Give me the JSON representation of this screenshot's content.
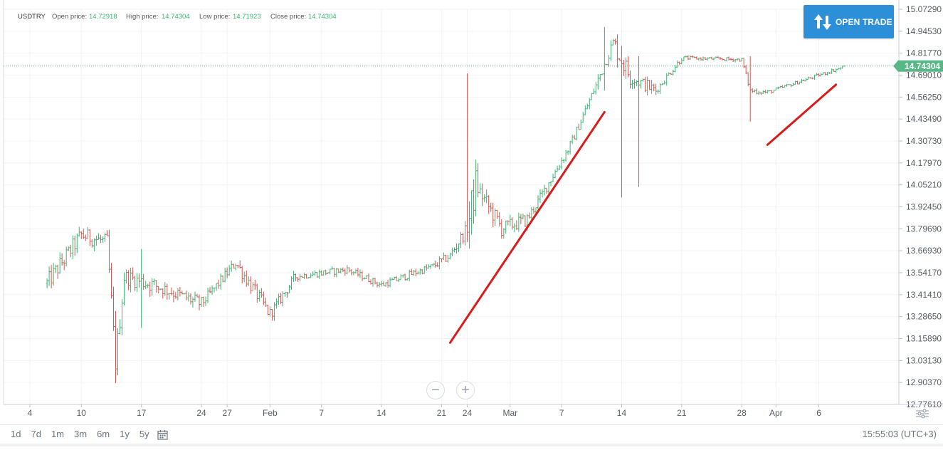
{
  "header": {
    "symbol": "USDTRY",
    "open_label": "Open price:",
    "open_value": "14.72918",
    "high_label": "High price:",
    "high_value": "14.74304",
    "low_label": "Low price:",
    "low_value": "14.71923",
    "close_label": "Close price:",
    "close_value": "14.74304"
  },
  "open_trade_label": "OPEN TRADE",
  "zoom": {
    "minus": "−",
    "plus": "+"
  },
  "ranges": [
    "1d",
    "7d",
    "1m",
    "3m",
    "6m",
    "1y",
    "5y"
  ],
  "clock": "15:55:03 (UTC+3)",
  "colors": {
    "up": "#3cb371",
    "down": "#d9534f",
    "price_tag": "#56b886",
    "trend": "#d81c1c",
    "button": "#2d8fd8"
  },
  "chart_data": {
    "type": "ohlc",
    "symbol": "USDTRY",
    "y_ticks": [
      "15.07290",
      "14.94530",
      "14.81770",
      "14.69010",
      "14.56250",
      "14.43490",
      "14.30730",
      "14.17970",
      "14.05210",
      "13.92450",
      "13.79690",
      "13.66930",
      "13.54170",
      "13.41410",
      "13.28650",
      "13.15890",
      "13.03130",
      "12.90370",
      "12.77610"
    ],
    "ylim": [
      12.7761,
      15.0729
    ],
    "x_ticks": [
      "4",
      "10",
      "17",
      "24",
      "27",
      "Feb",
      "7",
      "14",
      "21",
      "24",
      "Mar",
      "7",
      "14",
      "21",
      "28",
      "Apr",
      "6"
    ],
    "last_price": "14.74304",
    "trend_lines": [
      {
        "from": [
          "Feb 22",
          13.135
        ],
        "to": [
          "Mar 12",
          14.475
        ]
      },
      {
        "from": [
          "Mar 31",
          14.285
        ],
        "to": [
          "Apr 8",
          14.635
        ]
      }
    ],
    "segments": [
      {
        "from": "Jan 6",
        "to": "Jan 10",
        "start": 13.48,
        "end": 13.76,
        "vol": 0.1
      },
      {
        "from": "Jan 10",
        "to": "Jan 13",
        "start": 13.76,
        "end": 13.72,
        "vol": 0.09
      },
      {
        "from": "Jan 13",
        "to": "Jan 14",
        "start": 13.72,
        "end": 13.02,
        "vol": 0.12
      },
      {
        "from": "Jan 14",
        "to": "Jan 15",
        "start": 13.02,
        "end": 13.52,
        "vol": 0.12
      },
      {
        "from": "Jan 15",
        "to": "Jan 19",
        "start": 13.52,
        "end": 13.46,
        "vol": 0.09
      },
      {
        "from": "Jan 19",
        "to": "Jan 24",
        "start": 13.46,
        "end": 13.36,
        "vol": 0.08
      },
      {
        "from": "Jan 24",
        "to": "Jan 28",
        "start": 13.36,
        "end": 13.6,
        "vol": 0.06
      },
      {
        "from": "Jan 28",
        "to": "Feb 1",
        "start": 13.6,
        "end": 13.3,
        "vol": 0.08
      },
      {
        "from": "Feb 1",
        "to": "Feb 4",
        "start": 13.3,
        "end": 13.52,
        "vol": 0.06
      },
      {
        "from": "Feb 4",
        "to": "Feb 10",
        "start": 13.52,
        "end": 13.56,
        "vol": 0.04
      },
      {
        "from": "Feb 10",
        "to": "Feb 14",
        "start": 13.56,
        "end": 13.47,
        "vol": 0.04
      },
      {
        "from": "Feb 14",
        "to": "Feb 20",
        "start": 13.47,
        "end": 13.58,
        "vol": 0.04
      },
      {
        "from": "Feb 20",
        "to": "Feb 22",
        "start": 13.58,
        "end": 13.64,
        "vol": 0.05
      },
      {
        "from": "Feb 22",
        "to": "Feb 24",
        "start": 13.64,
        "end": 13.8,
        "vol": 0.07
      },
      {
        "from": "Feb 24",
        "to": "Feb 25",
        "start": 13.8,
        "end": 14.05,
        "vol": 0.22
      },
      {
        "from": "Feb 25",
        "to": "Feb 28",
        "start": 14.05,
        "end": 13.8,
        "vol": 0.1
      },
      {
        "from": "Feb 28",
        "to": "Mar 3",
        "start": 13.8,
        "end": 13.85,
        "vol": 0.08
      },
      {
        "from": "Mar 3",
        "to": "Mar 8",
        "start": 13.85,
        "end": 14.28,
        "vol": 0.06
      },
      {
        "from": "Mar 8",
        "to": "Mar 11",
        "start": 14.28,
        "end": 14.63,
        "vol": 0.05
      },
      {
        "from": "Mar 11",
        "to": "Mar 13",
        "start": 14.63,
        "end": 14.88,
        "vol": 0.07
      },
      {
        "from": "Mar 13",
        "to": "Mar 15",
        "start": 14.88,
        "end": 14.68,
        "vol": 0.12
      },
      {
        "from": "Mar 15",
        "to": "Mar 18",
        "start": 14.68,
        "end": 14.6,
        "vol": 0.07
      },
      {
        "from": "Mar 18",
        "to": "Mar 21",
        "start": 14.6,
        "end": 14.79,
        "vol": 0.04
      },
      {
        "from": "Mar 21",
        "to": "Mar 28",
        "start": 14.79,
        "end": 14.78,
        "vol": 0.02
      },
      {
        "from": "Mar 28",
        "to": "Mar 29",
        "start": 14.78,
        "end": 14.6,
        "vol": 0.03
      },
      {
        "from": "Mar 29",
        "to": "Mar 31",
        "start": 14.6,
        "end": 14.59,
        "vol": 0.03
      },
      {
        "from": "Mar 31",
        "to": "Apr 9",
        "start": 14.59,
        "end": 14.74,
        "vol": 0.02
      }
    ],
    "wicks": [
      {
        "date": "Jan 14",
        "low": 12.9,
        "high": 13.32
      },
      {
        "date": "Jan 17",
        "low": 13.22,
        "high": 13.68
      },
      {
        "date": "Feb 24",
        "low": 13.72,
        "high": 14.7
      },
      {
        "date": "Mar 12",
        "low": 14.6,
        "high": 14.97
      },
      {
        "date": "Mar 14",
        "low": 13.98,
        "high": 14.86
      },
      {
        "date": "Mar 16",
        "low": 14.04,
        "high": 14.8
      },
      {
        "date": "Mar 29",
        "low": 14.42,
        "high": 14.8
      }
    ]
  }
}
